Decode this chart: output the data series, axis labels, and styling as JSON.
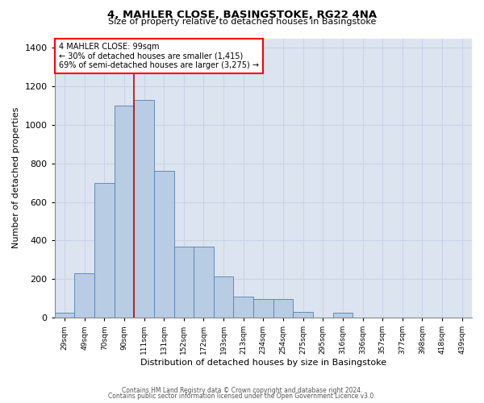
{
  "title": "4, MAHLER CLOSE, BASINGSTOKE, RG22 4NA",
  "subtitle": "Size of property relative to detached houses in Basingstoke",
  "xlabel": "Distribution of detached houses by size in Basingstoke",
  "ylabel": "Number of detached properties",
  "footnote1": "Contains HM Land Registry data © Crown copyright and database right 2024.",
  "footnote2": "Contains public sector information licensed under the Open Government Licence v3.0.",
  "annotation_title": "4 MAHLER CLOSE: 99sqm",
  "annotation_line1": "← 30% of detached houses are smaller (1,415)",
  "annotation_line2": "69% of semi-detached houses are larger (3,275) →",
  "bar_color": "#b8cce4",
  "bar_edge_color": "#5580b0",
  "grid_color": "#c8d4e8",
  "bg_color": "#dce4f0",
  "red_line_color": "#cc0000",
  "red_line_x": 99,
  "categories": [
    "29sqm",
    "49sqm",
    "70sqm",
    "90sqm",
    "111sqm",
    "131sqm",
    "152sqm",
    "172sqm",
    "193sqm",
    "213sqm",
    "234sqm",
    "254sqm",
    "275sqm",
    "295sqm",
    "316sqm",
    "336sqm",
    "357sqm",
    "377sqm",
    "398sqm",
    "418sqm",
    "439sqm"
  ],
  "bin_edges": [
    19,
    39,
    59,
    79,
    99,
    119,
    139,
    159,
    179,
    199,
    219,
    239,
    259,
    279,
    299,
    319,
    339,
    359,
    379,
    399,
    419,
    439
  ],
  "bar_heights": [
    25,
    230,
    700,
    1100,
    1130,
    760,
    370,
    370,
    215,
    110,
    95,
    95,
    30,
    0,
    25,
    0,
    0,
    0,
    0,
    0,
    0
  ],
  "ylim": [
    0,
    1450
  ],
  "yticks": [
    0,
    200,
    400,
    600,
    800,
    1000,
    1200,
    1400
  ]
}
